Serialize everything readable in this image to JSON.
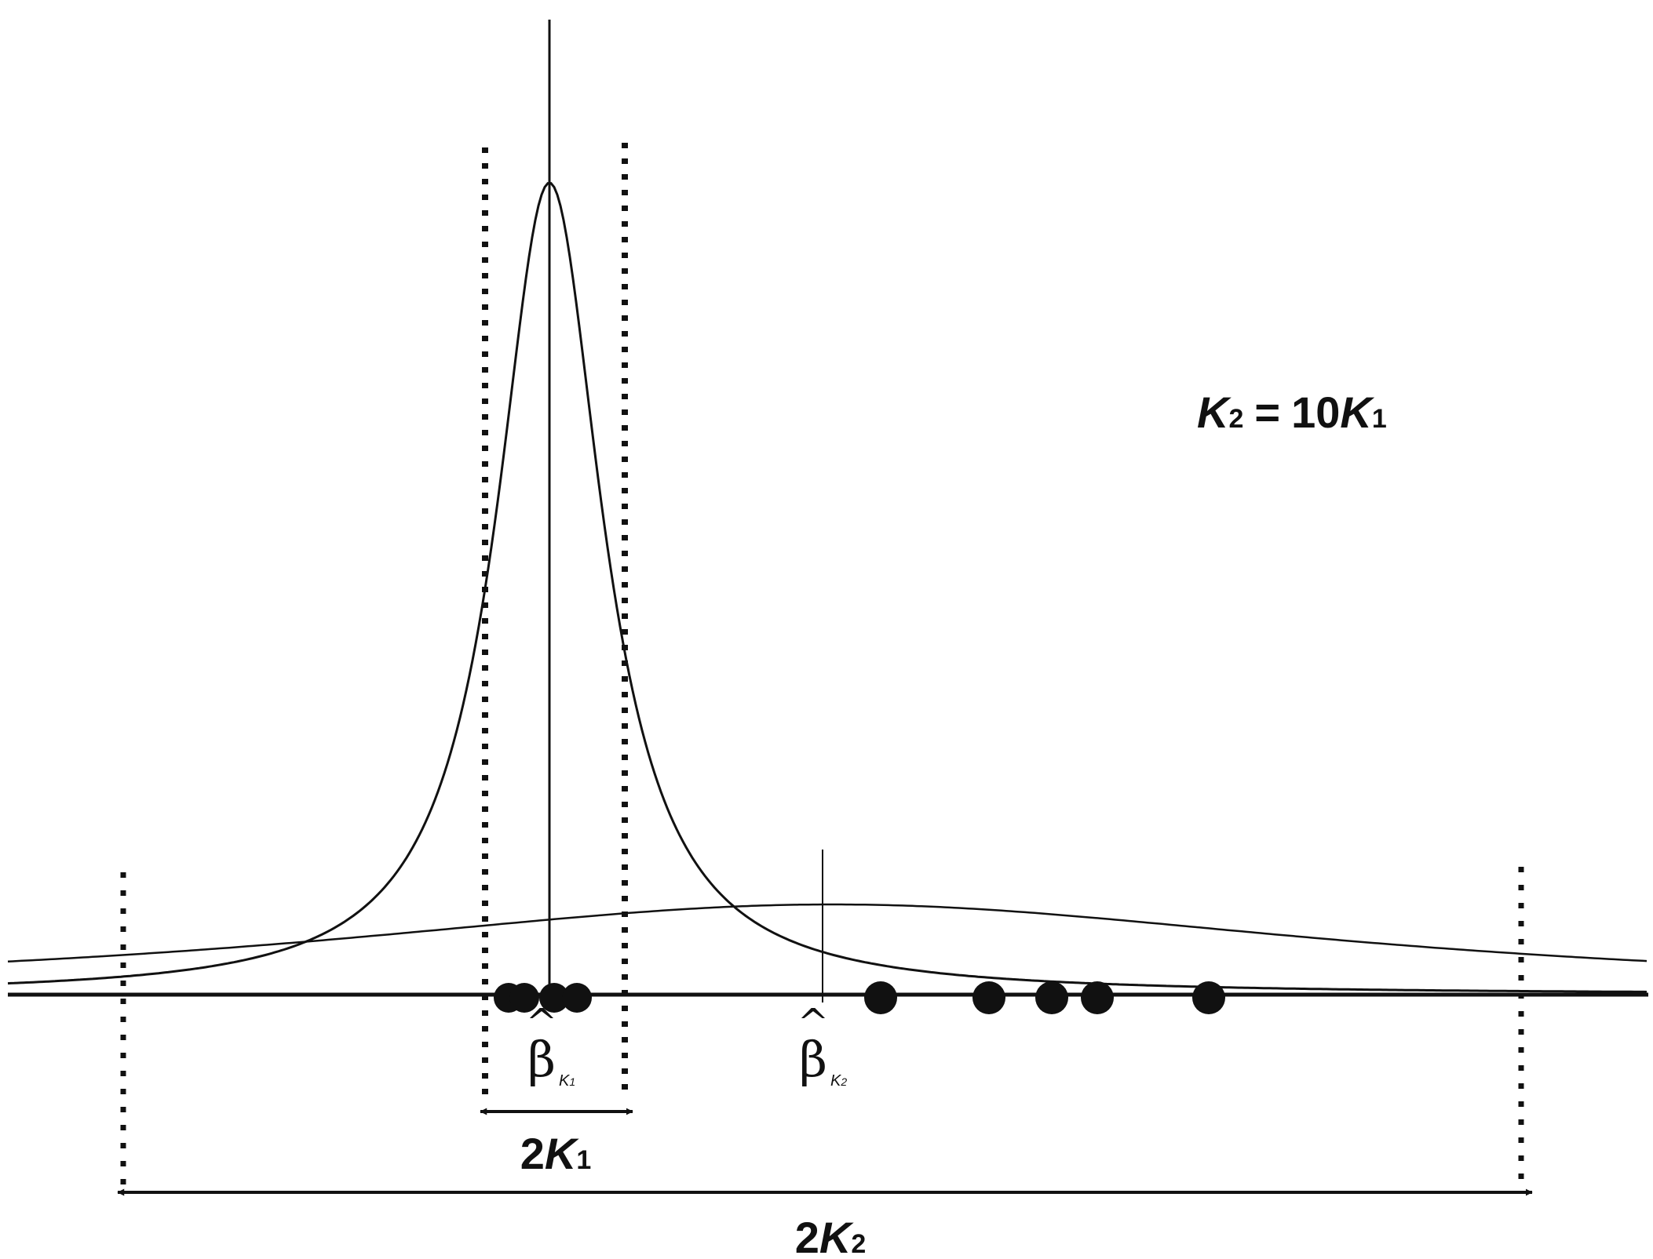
{
  "relation": {
    "left_var": "K",
    "left_sub": "2",
    "equals": "=",
    "factor": "10",
    "right_var": "K",
    "right_sub": "1"
  },
  "beta_k1": {
    "symbol": "β",
    "hat": "^",
    "sub_var": "K",
    "sub_index": "1"
  },
  "beta_k2": {
    "symbol": "β",
    "hat": "^",
    "sub_var": "K",
    "sub_index": "2"
  },
  "width_k1": {
    "factor": "2",
    "var": "K",
    "sub": "1"
  },
  "width_k2": {
    "factor": "2",
    "var": "K",
    "sub": "2"
  },
  "colors": {
    "ink": "#111111",
    "background": "#ffffff"
  }
}
